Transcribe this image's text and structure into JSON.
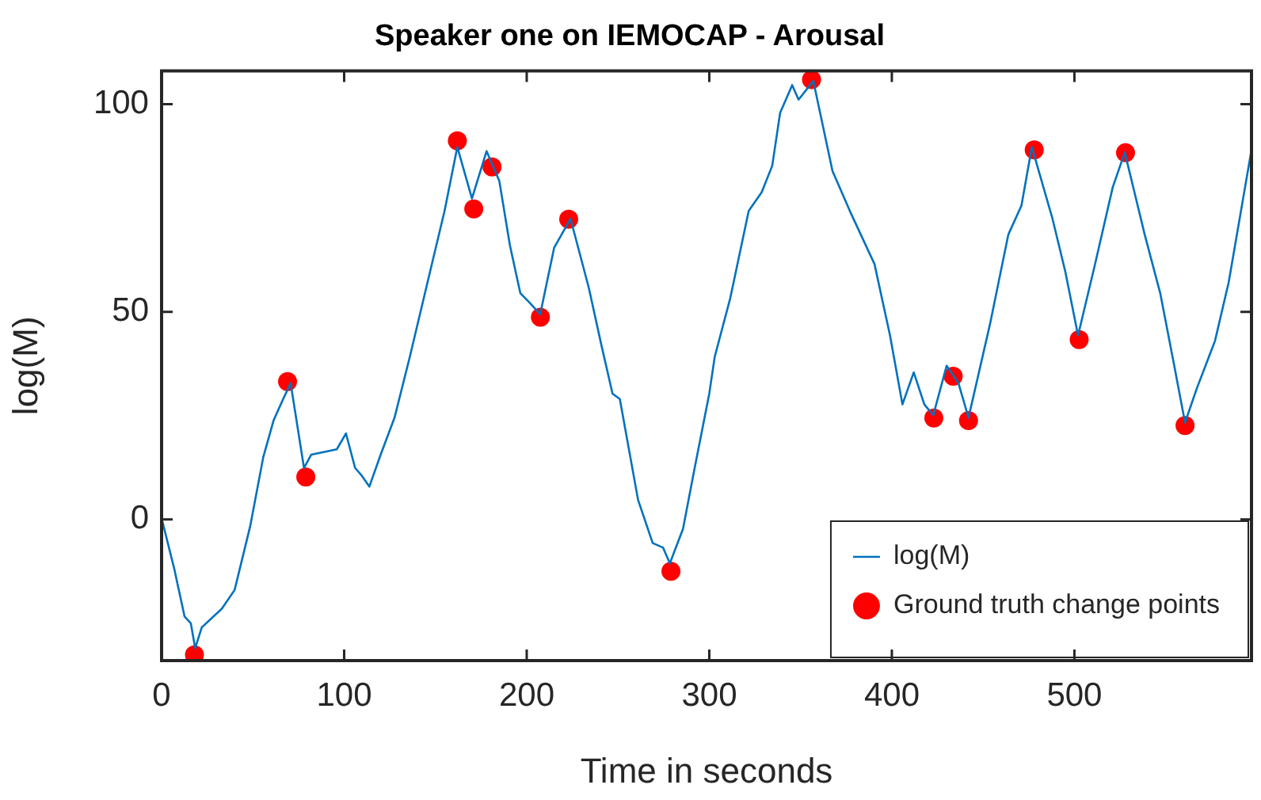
{
  "chart_data": {
    "type": "line",
    "title": "Speaker one on IEMOCAP - Arousal",
    "xlabel": "Time in seconds",
    "ylabel": "log(M)",
    "xlim": [
      0,
      597
    ],
    "ylim": [
      -34,
      108
    ],
    "xticks": [
      0,
      100,
      200,
      300,
      400,
      500
    ],
    "yticks": [
      0,
      50,
      100
    ],
    "grid": false,
    "legend": "bottom right",
    "series": [
      {
        "name": "log(M)",
        "type": "line",
        "color": "#0072bd",
        "marker": "none",
        "x": [
          0,
          7,
          12.6,
          16,
          18.4,
          22,
          33,
          40,
          48.5,
          55.7,
          61.4,
          66.6,
          70.7,
          78,
          82,
          96,
          101,
          106,
          109.7,
          113.8,
          120,
          127.6,
          136,
          146,
          155,
          162,
          170,
          178,
          185,
          190.8,
          196.5,
          202,
          207.4,
          215,
          224,
          234,
          241,
          247,
          251,
          261,
          269,
          274.7,
          278.4,
          285.6,
          292,
          300,
          303,
          311.5,
          321.6,
          328.7,
          334.5,
          338.8,
          345.4,
          348.9,
          357,
          367.5,
          377.6,
          390.5,
          399,
          405.8,
          412,
          417.8,
          422.7,
          430,
          436.5,
          442,
          453.7,
          463.8,
          471,
          476.7,
          488,
          495,
          502,
          511,
          521,
          527.6,
          538.5,
          547,
          554.3,
          560.6,
          567,
          577,
          584.5,
          597
        ],
        "values": [
          0.3,
          -12,
          -23.4,
          -25,
          -31,
          -26,
          -21.5,
          -17,
          -1.7,
          15,
          23.9,
          29,
          32.8,
          12.4,
          15.6,
          16.9,
          20.7,
          12.4,
          10.5,
          7.9,
          15.6,
          24.5,
          39.2,
          57.7,
          74.3,
          89.7,
          77.3,
          88.7,
          81.5,
          66,
          54.5,
          52,
          49.4,
          65.4,
          72.4,
          55.8,
          41.8,
          30.3,
          29,
          4.7,
          -5.7,
          -6.8,
          -10.6,
          -2.3,
          12.4,
          30.3,
          39.2,
          53.3,
          74.3,
          78.8,
          85.2,
          97.9,
          104.6,
          101.1,
          105.6,
          83.9,
          73.7,
          61.5,
          44.3,
          27.7,
          35.4,
          27.7,
          25.1,
          37,
          32.8,
          24.5,
          46.9,
          68.6,
          75.6,
          89.7,
          72.4,
          59.7,
          44.3,
          60.9,
          80,
          88.4,
          68.6,
          54.5,
          37.9,
          23.3,
          31.5,
          43,
          57.1,
          89
        ]
      },
      {
        "name": "Ground truth change points",
        "type": "scatter",
        "color": "#ff0000",
        "marker": "circle",
        "x": [
          18,
          69,
          79,
          162,
          171,
          181,
          207.5,
          223,
          279,
          356,
          423,
          433.6,
          442,
          478,
          502.6,
          528,
          560.6
        ],
        "values": [
          -32.6,
          33.2,
          10.2,
          91.2,
          74.8,
          84.9,
          48.7,
          72.3,
          -12.5,
          105.9,
          24.4,
          34.5,
          23.8,
          89,
          43.3,
          88.3,
          22.6
        ]
      }
    ]
  }
}
